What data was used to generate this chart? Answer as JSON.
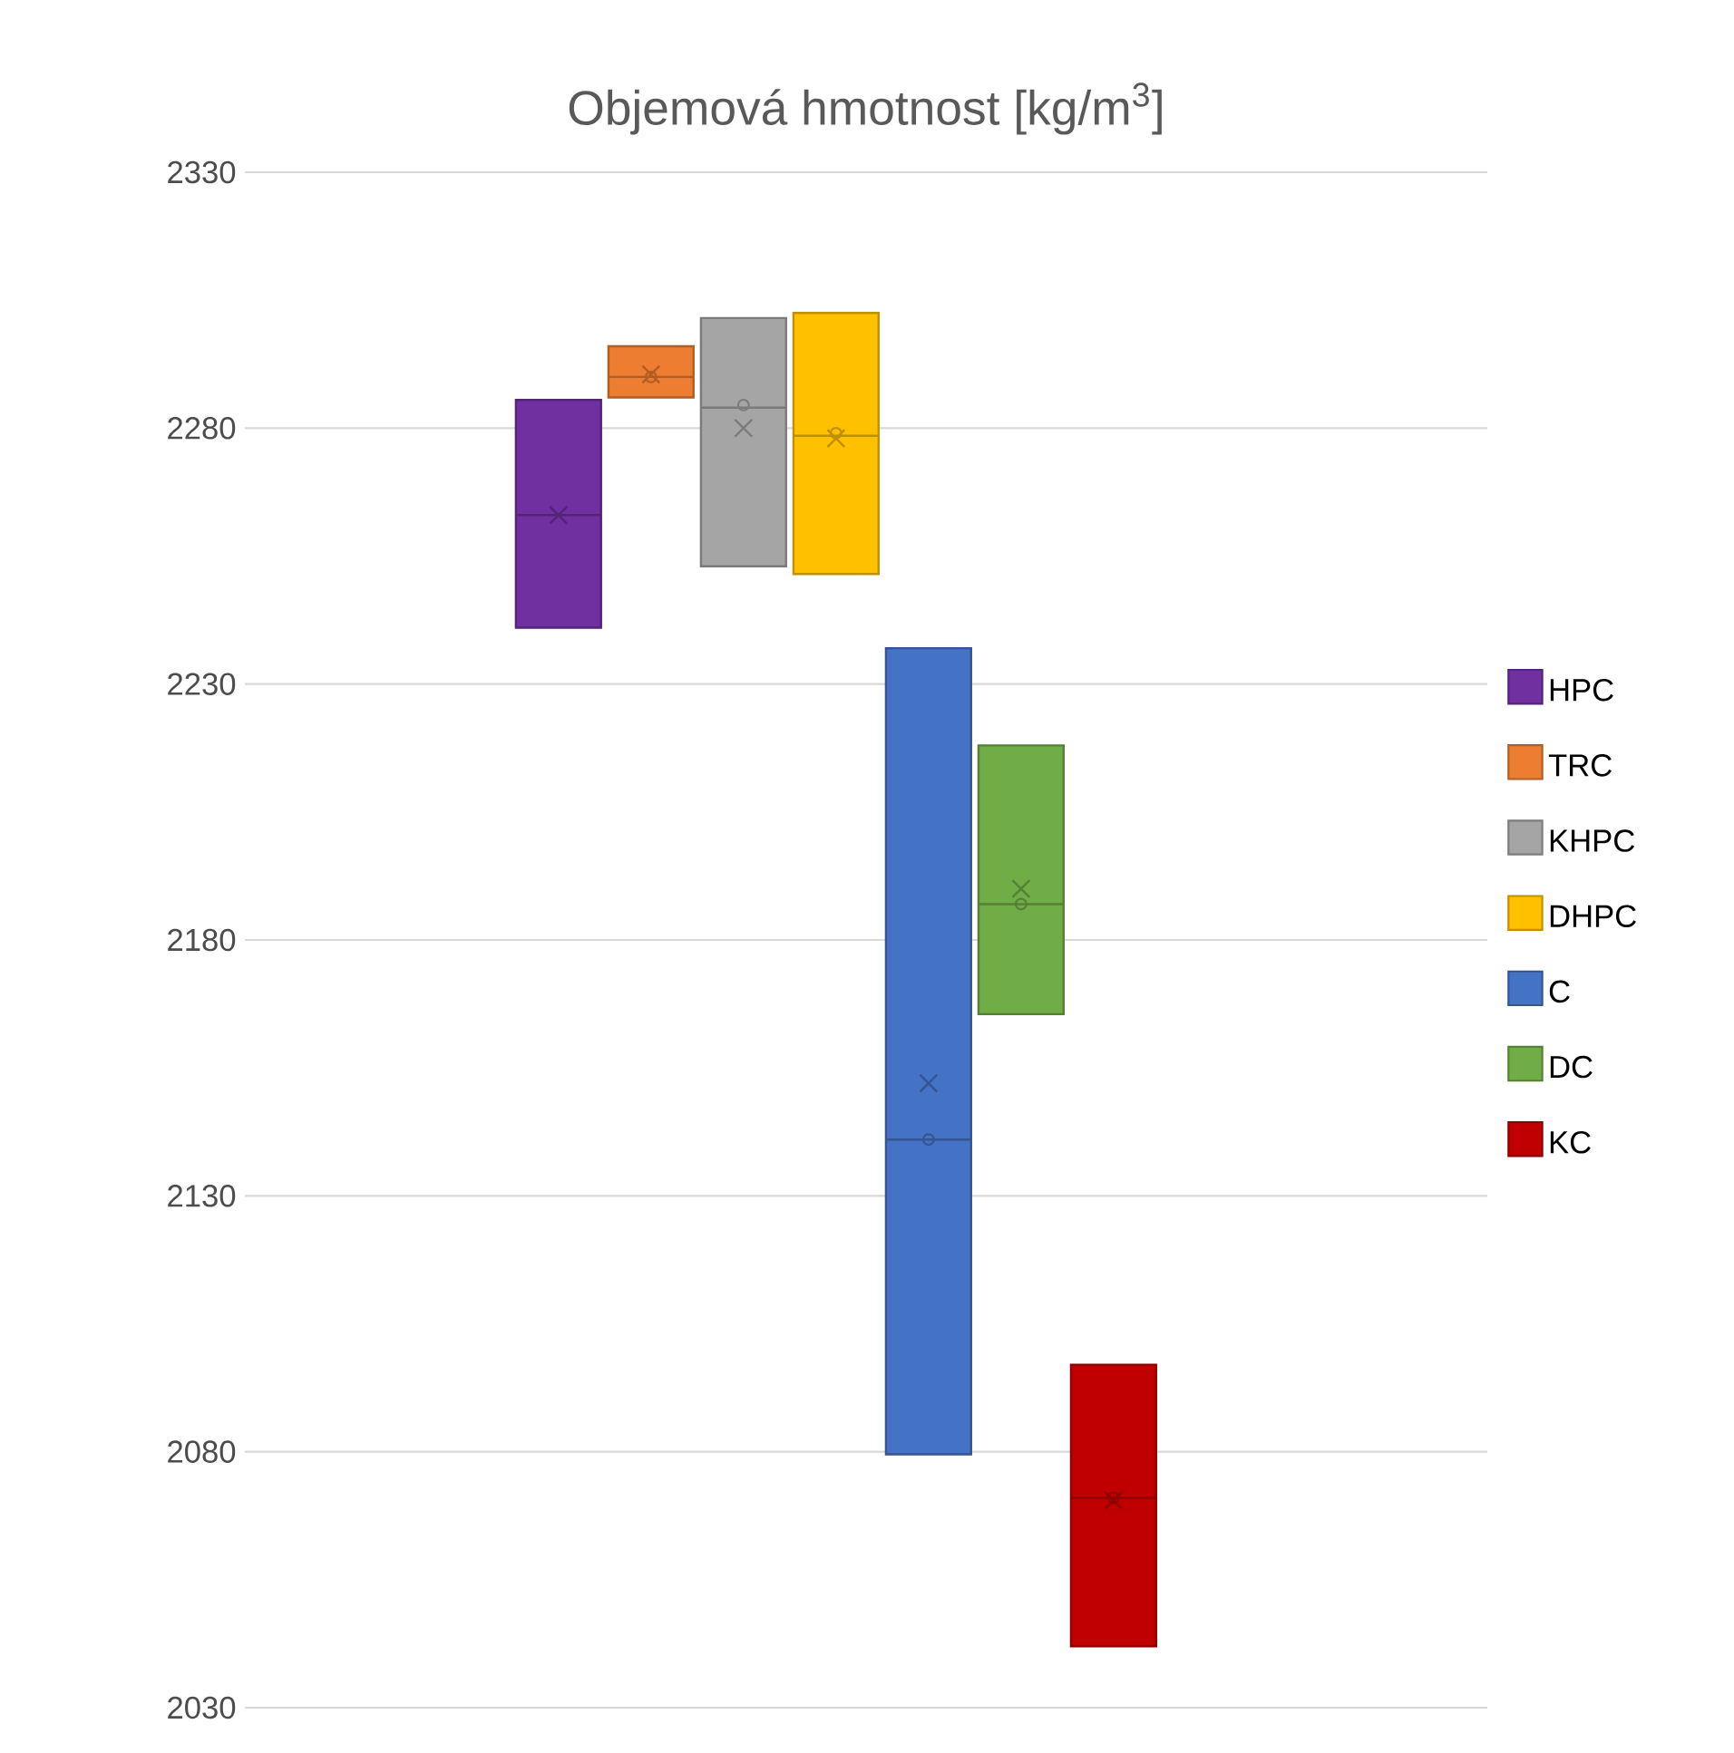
{
  "chart_data": {
    "type": "box",
    "title": "Objemová hmotnost [kg/m$^{3}$]",
    "categories": [
      null
    ],
    "ylim": [
      2030,
      2330
    ],
    "yticks": [
      2030,
      2080,
      2130,
      2180,
      2230,
      2280,
      2330
    ],
    "grid": "y",
    "legend": "right",
    "tick_labels": "y",
    "series": [
      {
        "name": "HPC",
        "color": "#7030a0",
        "boxes": [
          {
            "low": 2241,
            "q1": 2241,
            "median": 2263,
            "q3": 2285.5,
            "high": 2285.5,
            "mean": 2263
          }
        ]
      },
      {
        "name": "TRC",
        "color": "#ed7d31",
        "boxes": [
          {
            "low": 2286,
            "q1": 2286,
            "median": 2290,
            "q3": 2296,
            "high": 2296,
            "mean": 2290.5,
            "outliers": [
              2290
            ]
          }
        ]
      },
      {
        "name": "KHPC",
        "color": "#a5a5a5",
        "boxes": [
          {
            "low": 2253,
            "q1": 2253,
            "median": 2284,
            "q3": 2301.5,
            "high": 2301.5,
            "mean": 2280,
            "outliers": [
              2284.5
            ]
          }
        ]
      },
      {
        "name": "DHPC",
        "color": "#ffc000",
        "boxes": [
          {
            "low": 2251.5,
            "q1": 2251.5,
            "median": 2278.5,
            "q3": 2302.5,
            "high": 2302.5,
            "mean": 2278,
            "outliers": [
              2279
            ]
          }
        ]
      },
      {
        "name": "C",
        "color": "#4472c4",
        "boxes": [
          {
            "low": 2079.5,
            "q1": 2079.5,
            "median": 2141,
            "q3": 2237,
            "high": 2237,
            "mean": 2152,
            "outliers": [
              2141
            ]
          }
        ]
      },
      {
        "name": "DC",
        "color": "#70ad47",
        "boxes": [
          {
            "low": 2165.5,
            "q1": 2165.5,
            "median": 2187,
            "q3": 2218,
            "high": 2218,
            "mean": 2190,
            "outliers": [
              2187
            ]
          }
        ]
      },
      {
        "name": "KC",
        "color": "#c00000",
        "boxes": [
          {
            "low": 2042,
            "q1": 2042,
            "median": 2071,
            "q3": 2097,
            "high": 2097,
            "mean": 2070.5,
            "outliers": [
              2071
            ]
          }
        ]
      }
    ]
  }
}
